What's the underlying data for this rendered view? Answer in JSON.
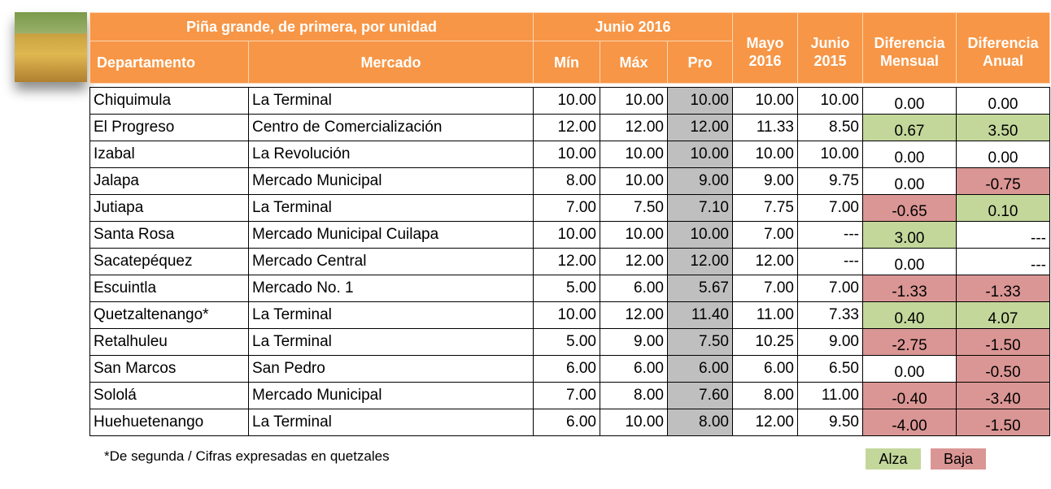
{
  "header": {
    "group_title": "Piña grande, de primera, por unidad",
    "period": "Junio 2016",
    "columns": [
      "Departamento",
      "Mercado",
      "Mín",
      "Máx",
      "Pro"
    ],
    "prev_month": "Mayo 2016",
    "prev_year": "Junio 2015",
    "diff_month": "Diferencia Mensual",
    "diff_year": "Diferencia Anual"
  },
  "table": {
    "rows": [
      [
        "Chiquimula",
        "La Terminal",
        "10.00",
        "10.00",
        "10.00",
        "10.00",
        "10.00",
        "0.00",
        "0.00"
      ],
      [
        "El Progreso",
        "Centro de Comercialización",
        "12.00",
        "12.00",
        "12.00",
        "11.33",
        "8.50",
        "0.67",
        "3.50"
      ],
      [
        "Izabal",
        "La Revolución",
        "10.00",
        "10.00",
        "10.00",
        "10.00",
        "10.00",
        "0.00",
        "0.00"
      ],
      [
        "Jalapa",
        "Mercado Municipal",
        "8.00",
        "10.00",
        "9.00",
        "9.00",
        "9.75",
        "0.00",
        "-0.75"
      ],
      [
        "Jutiapa",
        "La Terminal",
        "7.00",
        "7.50",
        "7.10",
        "7.75",
        "7.00",
        "-0.65",
        "0.10"
      ],
      [
        "Santa Rosa",
        "Mercado Municipal Cuilapa",
        "10.00",
        "10.00",
        "10.00",
        "7.00",
        "---",
        "3.00",
        "---"
      ],
      [
        "Sacatepéquez",
        "Mercado Central",
        "12.00",
        "12.00",
        "12.00",
        "12.00",
        "---",
        "0.00",
        "---"
      ],
      [
        "Escuintla",
        "Mercado No. 1",
        "5.00",
        "6.00",
        "5.67",
        "7.00",
        "7.00",
        "-1.33",
        "-1.33"
      ],
      [
        "Quetzaltenango*",
        "La Terminal",
        "10.00",
        "12.00",
        "11.40",
        "11.00",
        "7.33",
        "0.40",
        "4.07"
      ],
      [
        "Retalhuleu",
        "La Terminal",
        "5.00",
        "9.00",
        "7.50",
        "10.25",
        "9.00",
        "-2.75",
        "-1.50"
      ],
      [
        "San Marcos",
        "San Pedro",
        "6.00",
        "6.00",
        "6.00",
        "6.00",
        "6.50",
        "0.00",
        "-0.50"
      ],
      [
        "Sololá",
        "Mercado Municipal",
        "7.00",
        "8.00",
        "7.60",
        "8.00",
        "11.00",
        "-0.40",
        "-3.40"
      ],
      [
        "Huehuetenango",
        "La Terminal",
        "6.00",
        "10.00",
        "8.00",
        "12.00",
        "9.50",
        "-4.00",
        "-1.50"
      ]
    ]
  },
  "footnote": "*De segunda / Cifras expresadas en quetzales",
  "legend": [
    {
      "label": "Alza",
      "color": "#c4d79b"
    },
    {
      "label": "Baja",
      "color": "#da9694"
    }
  ]
}
